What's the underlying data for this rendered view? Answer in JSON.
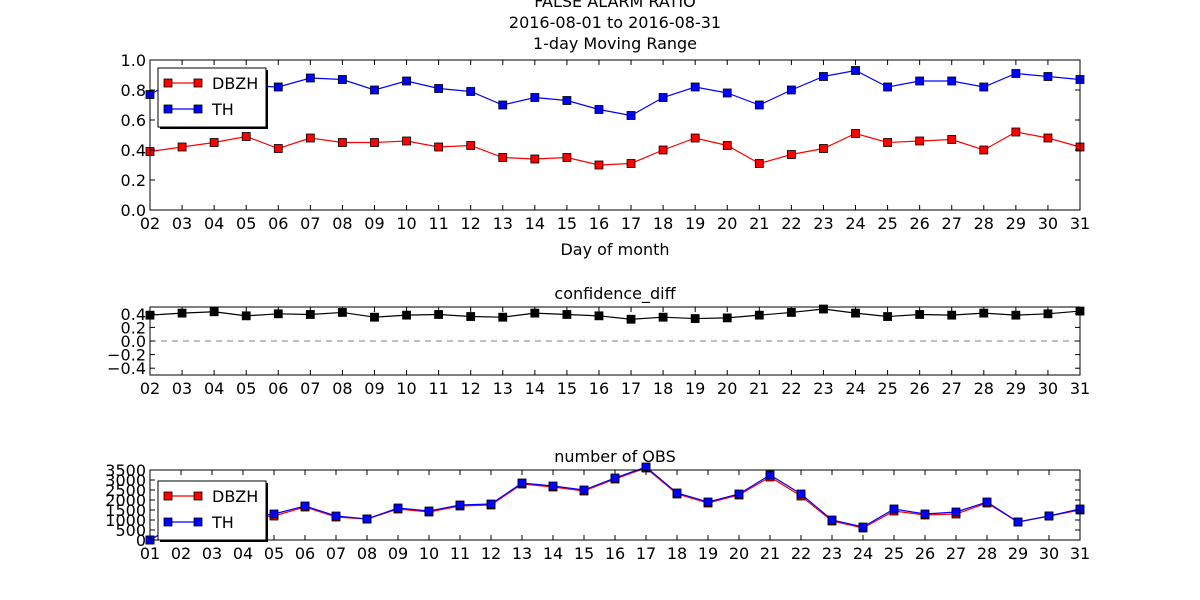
{
  "chart_data": [
    {
      "type": "line",
      "title": "FALSE ALARM RATIO\n2016-08-01 to 2016-08-31\n1-day Moving Range",
      "title_lines": [
        "FALSE ALARM RATIO",
        "2016-08-01 to 2016-08-31",
        "1-day Moving Range"
      ],
      "xlabel": "Day of month",
      "ylabel": "",
      "x": [
        "02",
        "03",
        "04",
        "05",
        "06",
        "07",
        "08",
        "09",
        "10",
        "11",
        "12",
        "13",
        "14",
        "15",
        "16",
        "17",
        "18",
        "19",
        "20",
        "21",
        "22",
        "23",
        "24",
        "25",
        "26",
        "27",
        "28",
        "29",
        "30",
        "31"
      ],
      "ylim": [
        0.0,
        1.0
      ],
      "yticks": [
        "0.0",
        "0.2",
        "0.4",
        "0.6",
        "0.8",
        "1.0"
      ],
      "legend": "top-left",
      "grid": false,
      "series": [
        {
          "name": "DBZH",
          "color": "#ff0000",
          "values": [
            0.39,
            0.42,
            0.45,
            0.49,
            0.41,
            0.48,
            0.45,
            0.45,
            0.46,
            0.42,
            0.43,
            0.35,
            0.34,
            0.35,
            0.3,
            0.31,
            0.4,
            0.48,
            0.43,
            0.31,
            0.37,
            0.41,
            0.51,
            0.45,
            0.46,
            0.47,
            0.4,
            0.52,
            0.48,
            0.42
          ]
        },
        {
          "name": "TH",
          "color": "#0000ff",
          "values": [
            0.77,
            0.89,
            0.84,
            0.83,
            0.82,
            0.88,
            0.87,
            0.8,
            0.86,
            0.81,
            0.79,
            0.7,
            0.75,
            0.73,
            0.67,
            0.63,
            0.75,
            0.82,
            0.78,
            0.7,
            0.8,
            0.89,
            0.93,
            0.82,
            0.86,
            0.86,
            0.82,
            0.91,
            0.89,
            0.87
          ]
        }
      ]
    },
    {
      "type": "line",
      "title": "confidence_diff",
      "xlabel": "",
      "ylabel": "",
      "x": [
        "02",
        "03",
        "04",
        "05",
        "06",
        "07",
        "08",
        "09",
        "10",
        "11",
        "12",
        "13",
        "14",
        "15",
        "16",
        "17",
        "18",
        "19",
        "20",
        "21",
        "22",
        "23",
        "24",
        "25",
        "26",
        "27",
        "28",
        "29",
        "30",
        "31"
      ],
      "ylim": [
        -0.5,
        0.5
      ],
      "yticks": [
        "0.4",
        "0.2",
        "0.0",
        "−0.2",
        "−0.4"
      ],
      "ytick_values": [
        0.4,
        0.2,
        0.0,
        -0.2,
        -0.4
      ],
      "reference_line": 0.0,
      "grid": false,
      "series": [
        {
          "color": "#000000",
          "values": [
            0.38,
            0.41,
            0.43,
            0.37,
            0.4,
            0.39,
            0.42,
            0.35,
            0.38,
            0.39,
            0.36,
            0.35,
            0.41,
            0.39,
            0.37,
            0.32,
            0.35,
            0.33,
            0.34,
            0.38,
            0.42,
            0.47,
            0.41,
            0.36,
            0.39,
            0.38,
            0.41,
            0.38,
            0.4,
            0.44
          ]
        }
      ]
    },
    {
      "type": "line",
      "title": "number of OBS",
      "xlabel": "",
      "ylabel": "",
      "x": [
        "01",
        "02",
        "03",
        "04",
        "05",
        "06",
        "07",
        "08",
        "09",
        "10",
        "11",
        "12",
        "13",
        "14",
        "15",
        "16",
        "17",
        "18",
        "19",
        "20",
        "21",
        "22",
        "23",
        "24",
        "25",
        "26",
        "27",
        "28",
        "29",
        "30",
        "31"
      ],
      "ylim": [
        0,
        3500
      ],
      "yticks": [
        "3500",
        "3000",
        "2500",
        "2000",
        "1500",
        "1000",
        "500",
        "0"
      ],
      "ytick_values": [
        3500,
        3000,
        2500,
        2000,
        1500,
        1000,
        500,
        0
      ],
      "legend": "left",
      "grid": false,
      "series": [
        {
          "name": "DBZH",
          "color": "#ff0000",
          "values": [
            0,
            900,
            1000,
            1100,
            1200,
            1650,
            1150,
            1050,
            1550,
            1400,
            1700,
            1750,
            2800,
            2650,
            2450,
            3050,
            3600,
            2300,
            1850,
            2250,
            3150,
            2200,
            950,
            600,
            1450,
            1250,
            1300,
            1850,
            900,
            1200,
            1500
          ]
        },
        {
          "name": "TH",
          "color": "#0000ff",
          "values": [
            0,
            900,
            1000,
            1100,
            1300,
            1700,
            1200,
            1050,
            1600,
            1450,
            1750,
            1800,
            2850,
            2700,
            2500,
            3100,
            3650,
            2350,
            1900,
            2300,
            3250,
            2300,
            1000,
            650,
            1550,
            1300,
            1400,
            1900,
            900,
            1200,
            1550
          ]
        }
      ]
    }
  ]
}
